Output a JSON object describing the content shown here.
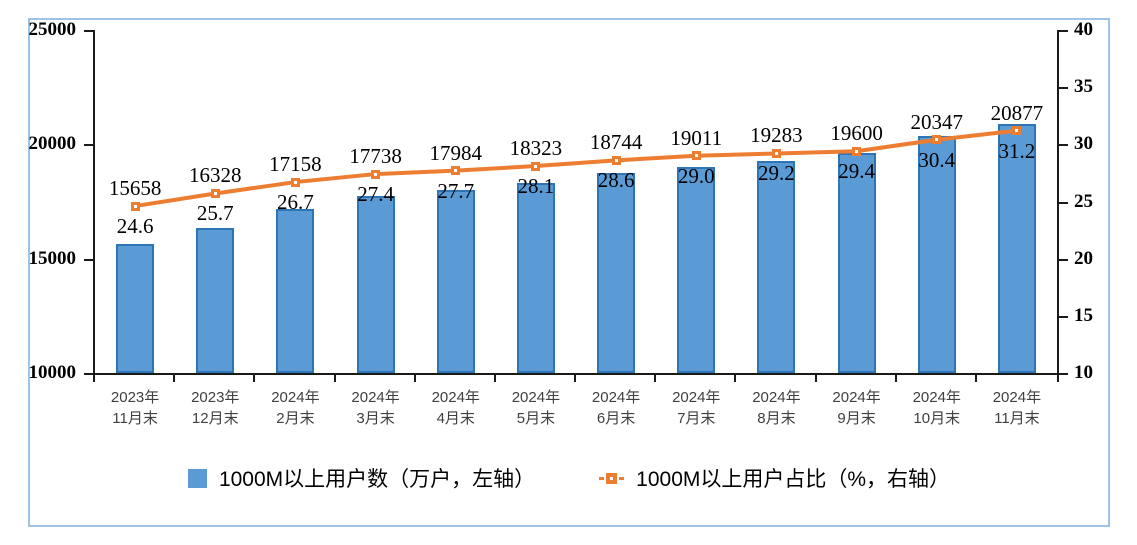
{
  "chart_data": {
    "type": "bar",
    "combo": "bar+line",
    "title": "",
    "categories": [
      [
        "2023年",
        "11月末"
      ],
      [
        "2023年",
        "12月末"
      ],
      [
        "2024年",
        "2月末"
      ],
      [
        "2024年",
        "3月末"
      ],
      [
        "2024年",
        "4月末"
      ],
      [
        "2024年",
        "5月末"
      ],
      [
        "2024年",
        "6月末"
      ],
      [
        "2024年",
        "7月末"
      ],
      [
        "2024年",
        "8月末"
      ],
      [
        "2024年",
        "9月末"
      ],
      [
        "2024年",
        "10月末"
      ],
      [
        "2024年",
        "11月末"
      ]
    ],
    "series": [
      {
        "name": "1000M以上用户数（万户，左轴）",
        "type": "bar",
        "axis": "left",
        "values": [
          15658,
          16328,
          17158,
          17738,
          17984,
          18323,
          18744,
          19011,
          19283,
          19600,
          20347,
          20877
        ],
        "labels": [
          "15658",
          "16328",
          "17158",
          "17738",
          "17984",
          "18323",
          "18744",
          "19011",
          "19283",
          "19600",
          "20347",
          "20877"
        ],
        "fill_color": "#5B9BD5",
        "border_color": "#2E75B6"
      },
      {
        "name": "1000M以上用户占比（%，右轴）",
        "type": "line",
        "axis": "right",
        "values": [
          24.6,
          25.7,
          26.7,
          27.4,
          27.7,
          28.1,
          28.6,
          29.0,
          29.2,
          29.4,
          30.4,
          31.2
        ],
        "labels": [
          "24.6",
          "25.7",
          "26.7",
          "27.4",
          "27.7",
          "28.1",
          "28.6",
          "29.0",
          "29.2",
          "29.4",
          "30.4",
          "31.2"
        ],
        "line_color": "#ED7D31",
        "marker": "square-with-white-core"
      }
    ],
    "left_axis": {
      "min": 10000,
      "max": 25000,
      "step": 5000,
      "tick_labels": [
        "10000",
        "15000",
        "20000",
        "25000"
      ]
    },
    "right_axis": {
      "min": 10,
      "max": 40,
      "step": 5,
      "tick_labels": [
        "10",
        "15",
        "20",
        "25",
        "30",
        "35",
        "40"
      ]
    },
    "grid": false,
    "legend_position": "bottom",
    "frame_border_color": "#9DC3E6"
  },
  "legend": {
    "bar_label": "1000M以上用户数（万户，左轴）",
    "line_label": "1000M以上用户占比（%，右轴）"
  },
  "colors": {
    "bar_fill": "#5B9BD5",
    "bar_border": "#2E75B6",
    "line": "#ED7D31",
    "frame_border": "#9DC3E6",
    "axis": "#1a1a1a",
    "x_label_text": "#404040",
    "label_text": "#000000"
  }
}
